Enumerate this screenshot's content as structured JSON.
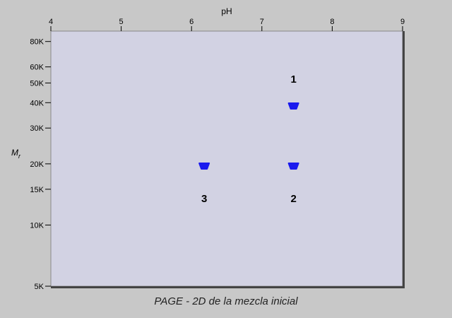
{
  "caption": "PAGE - 2D de la mezcla inicial",
  "chart_data": {
    "type": "scatter",
    "title": "",
    "xlabel": "pH",
    "ylabel": "Mr",
    "xlim": [
      4,
      9
    ],
    "ylim": [
      5000,
      90000
    ],
    "yscale": "log",
    "xticks": [
      4,
      5,
      6,
      7,
      8,
      9
    ],
    "yticks": [
      {
        "value": 80000,
        "label": "80K"
      },
      {
        "value": 60000,
        "label": "60K"
      },
      {
        "value": 50000,
        "label": "50K"
      },
      {
        "value": 40000,
        "label": "40K"
      },
      {
        "value": 30000,
        "label": "30K"
      },
      {
        "value": 20000,
        "label": "20K"
      },
      {
        "value": 15000,
        "label": "15K"
      },
      {
        "value": 10000,
        "label": "10K"
      },
      {
        "value": 5000,
        "label": "5K"
      }
    ],
    "points": [
      {
        "label": "1",
        "x": 7.45,
        "y": 38500,
        "label_position": "above"
      },
      {
        "label": "2",
        "x": 7.45,
        "y": 19500,
        "label_position": "below"
      },
      {
        "label": "3",
        "x": 6.18,
        "y": 19500,
        "label_position": "below"
      }
    ],
    "grid": false,
    "colors": {
      "plot_bg": "#d2d2e3",
      "spot": "#1a1aee",
      "frame": "#444444"
    }
  }
}
